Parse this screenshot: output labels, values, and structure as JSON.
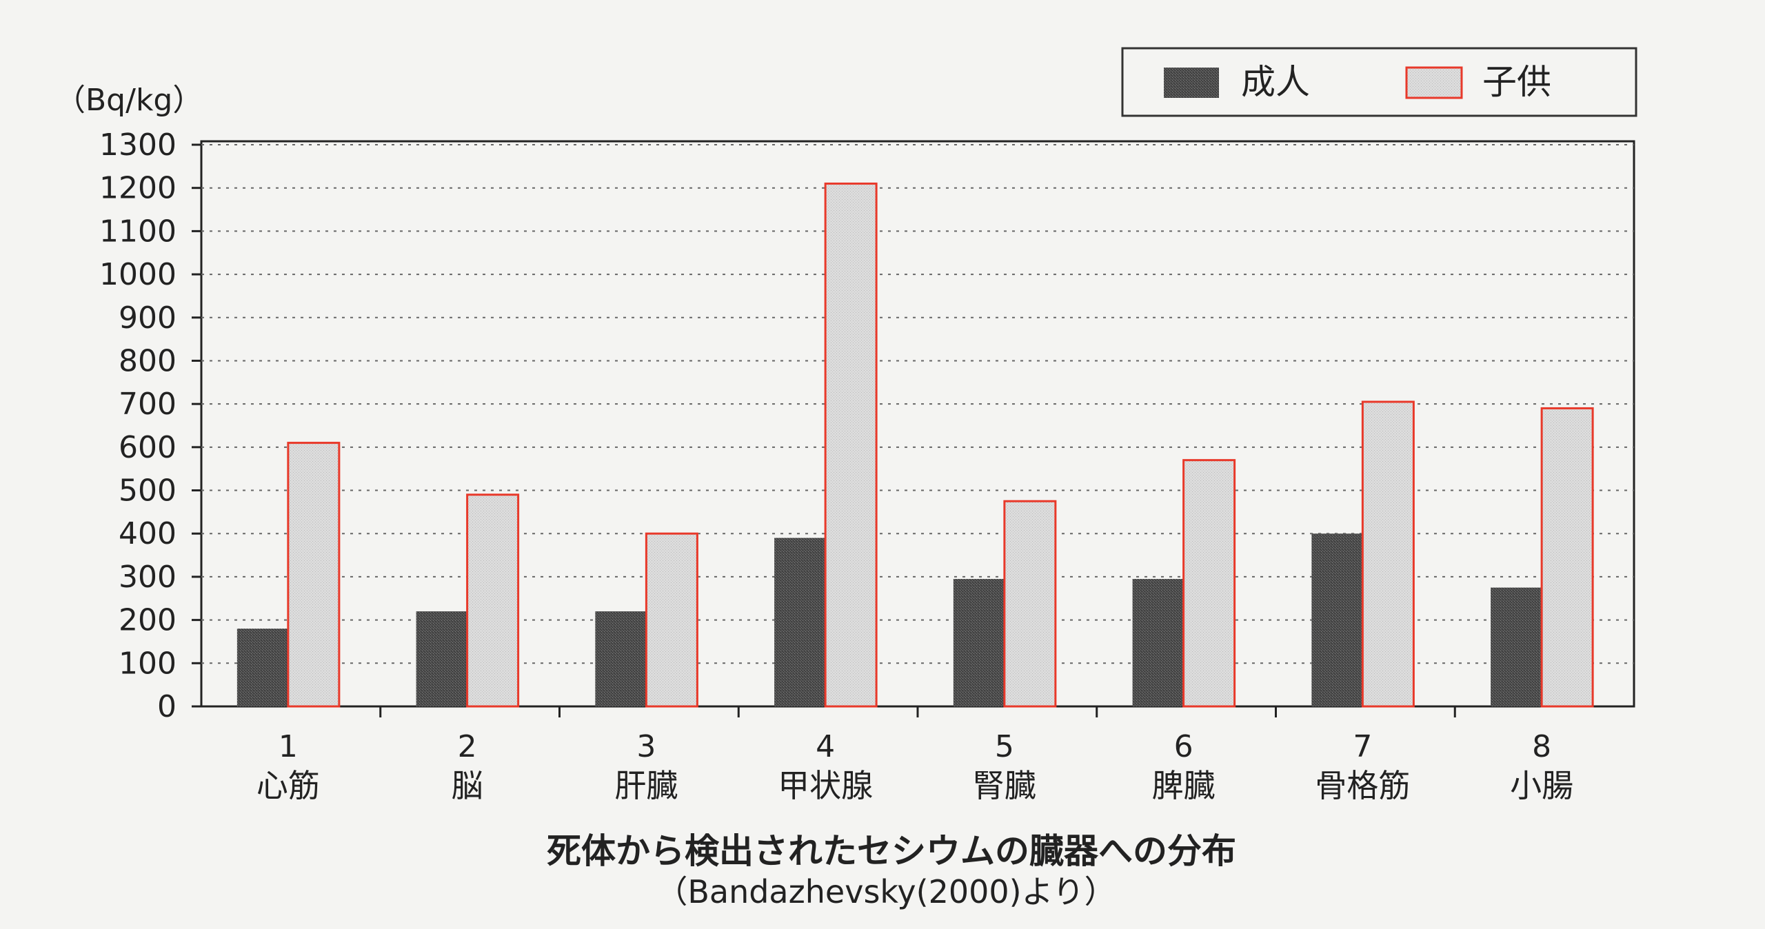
{
  "chart_data": {
    "type": "bar",
    "title": "死体から検出されたセシウムの臓器への分布",
    "subtitle": "（Bandazhevsky(2000)より）",
    "ylabel": "（Bq/kg）",
    "xlabel": "",
    "ylim": [
      0,
      1300
    ],
    "yticks": [
      "0",
      "100",
      "200",
      "300",
      "400",
      "500",
      "600",
      "700",
      "800",
      "900",
      "1000",
      "1100",
      "1200",
      "1300"
    ],
    "categories": [
      {
        "num": "1",
        "label": "心筋"
      },
      {
        "num": "2",
        "label": "脳"
      },
      {
        "num": "3",
        "label": "肝臓"
      },
      {
        "num": "4",
        "label": "甲状腺"
      },
      {
        "num": "5",
        "label": "腎臓"
      },
      {
        "num": "6",
        "label": "脾臓"
      },
      {
        "num": "7",
        "label": "骨格筋"
      },
      {
        "num": "8",
        "label": "小腸"
      }
    ],
    "series": [
      {
        "name": "成人",
        "values": [
          180,
          220,
          220,
          390,
          295,
          295,
          400,
          275
        ],
        "color": "#555555"
      },
      {
        "name": "子供",
        "values": [
          610,
          490,
          400,
          1210,
          475,
          570,
          705,
          690
        ],
        "color": "#d9d9d9",
        "stroke": "#e8392a"
      }
    ],
    "grid": true,
    "legend_position": "top-right"
  }
}
